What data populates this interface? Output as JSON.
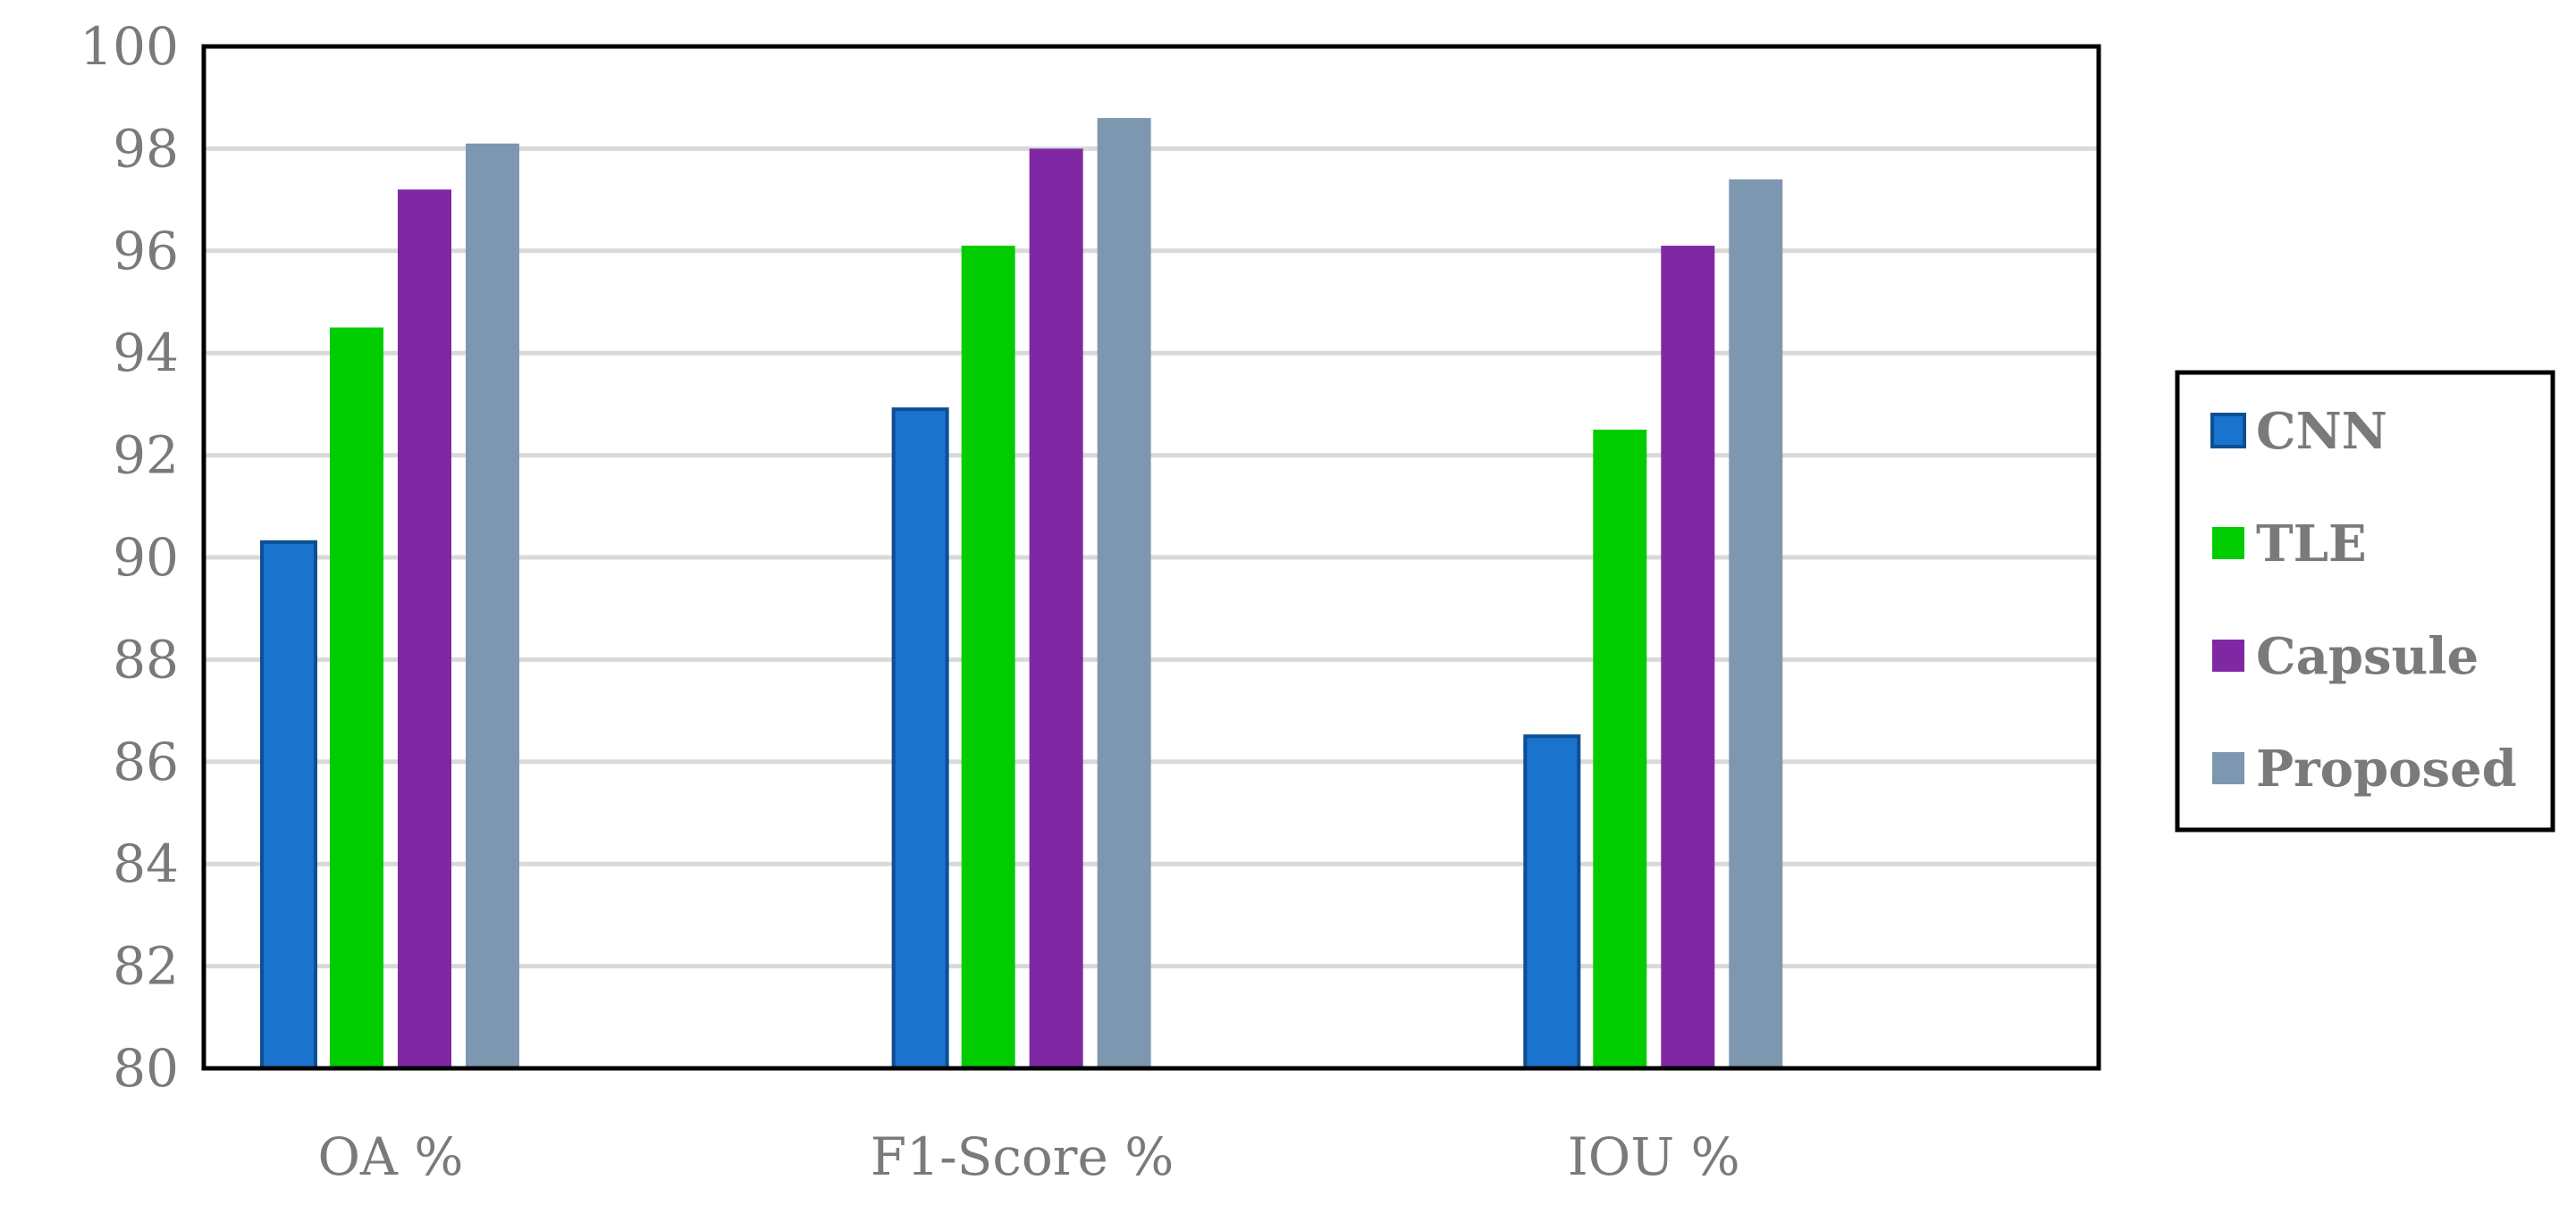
{
  "chart_data": {
    "type": "bar",
    "title": "",
    "xlabel": "",
    "ylabel": "",
    "categories": [
      "OA %",
      "F1-Score %",
      "IOU %"
    ],
    "series": [
      {
        "name": "CNN",
        "values": [
          90.3,
          92.9,
          86.5
        ],
        "color": "#1a73cc"
      },
      {
        "name": "TLE",
        "values": [
          94.5,
          96.1,
          92.5
        ],
        "color": "#00cc00"
      },
      {
        "name": "Capsule",
        "values": [
          97.2,
          98.0,
          96.1
        ],
        "color": "#8028a3"
      },
      {
        "name": "Proposed",
        "values": [
          98.1,
          98.6,
          97.4
        ],
        "color": "#7e97b1"
      }
    ],
    "ylim": [
      80,
      100
    ],
    "yticks": [
      80,
      82,
      84,
      86,
      88,
      90,
      92,
      94,
      96,
      98,
      100
    ],
    "grid": true,
    "legend": "right"
  }
}
